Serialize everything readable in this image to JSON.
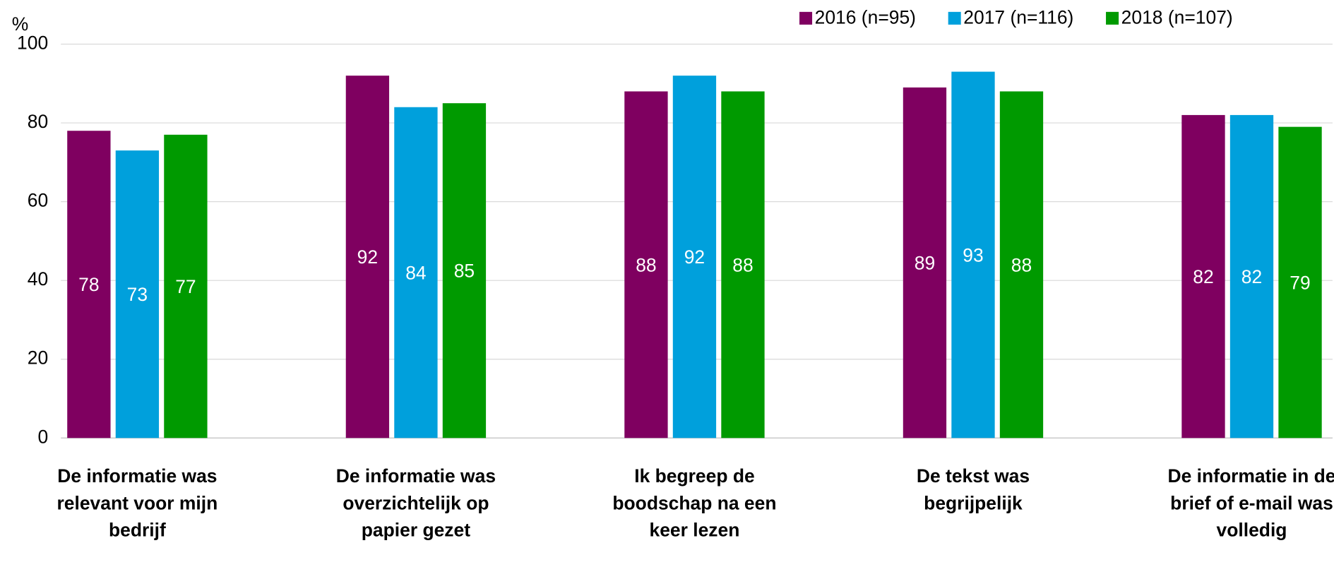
{
  "chart_data": {
    "type": "bar",
    "y_label": "%",
    "categories": [
      "De informatie was relevant voor mijn bedrijf",
      "De informatie was overzichtelijk op papier gezet",
      "Ik begreep de boodschap na een keer lezen",
      "De tekst was begrijpelijk",
      "De informatie in de brief of e-mail was volledig"
    ],
    "series": [
      {
        "name": "2016 (n=95)",
        "color": "#7f0060",
        "values": [
          78,
          92,
          88,
          89,
          82
        ]
      },
      {
        "name": "2017 (n=116)",
        "color": "#00a0dc",
        "values": [
          73,
          84,
          92,
          93,
          82
        ]
      },
      {
        "name": "2018 (n=107)",
        "color": "#009a00",
        "values": [
          77,
          85,
          88,
          88,
          79
        ]
      }
    ],
    "ylim": [
      0,
      100
    ],
    "yticks": [
      0,
      20,
      40,
      60,
      80,
      100
    ],
    "grid": true,
    "legend": "top-right"
  }
}
